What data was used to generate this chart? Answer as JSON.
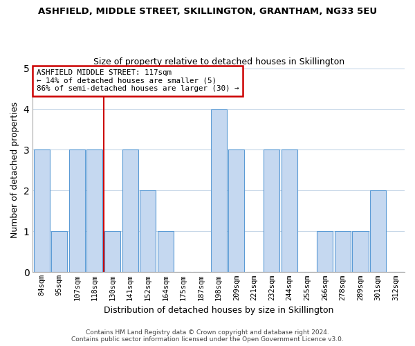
{
  "title": "ASHFIELD, MIDDLE STREET, SKILLINGTON, GRANTHAM, NG33 5EU",
  "subtitle": "Size of property relative to detached houses in Skillington",
  "xlabel": "Distribution of detached houses by size in Skillington",
  "ylabel": "Number of detached properties",
  "bins": [
    "84sqm",
    "95sqm",
    "107sqm",
    "118sqm",
    "130sqm",
    "141sqm",
    "152sqm",
    "164sqm",
    "175sqm",
    "187sqm",
    "198sqm",
    "209sqm",
    "221sqm",
    "232sqm",
    "244sqm",
    "255sqm",
    "266sqm",
    "278sqm",
    "289sqm",
    "301sqm",
    "312sqm"
  ],
  "values": [
    3,
    1,
    3,
    3,
    1,
    3,
    2,
    1,
    0,
    0,
    4,
    3,
    0,
    3,
    3,
    0,
    1,
    1,
    1,
    2,
    0
  ],
  "bar_color": "#c5d8f0",
  "bar_edge_color": "#5b9bd5",
  "vline_x_index": 3,
  "vline_color": "#cc0000",
  "box_text_line1": "ASHFIELD MIDDLE STREET: 117sqm",
  "box_text_line2": "← 14% of detached houses are smaller (5)",
  "box_text_line3": "86% of semi-detached houses are larger (30) →",
  "box_edge_color": "#cc0000",
  "footer_line1": "Contains HM Land Registry data © Crown copyright and database right 2024.",
  "footer_line2": "Contains public sector information licensed under the Open Government Licence v3.0.",
  "ylim": [
    0,
    5
  ],
  "yticks": [
    0,
    1,
    2,
    3,
    4,
    5
  ],
  "bg_color": "#ffffff",
  "grid_color": "#c8d8e8",
  "vline_position": 3.5,
  "figsize": [
    6.0,
    5.0
  ],
  "dpi": 100
}
